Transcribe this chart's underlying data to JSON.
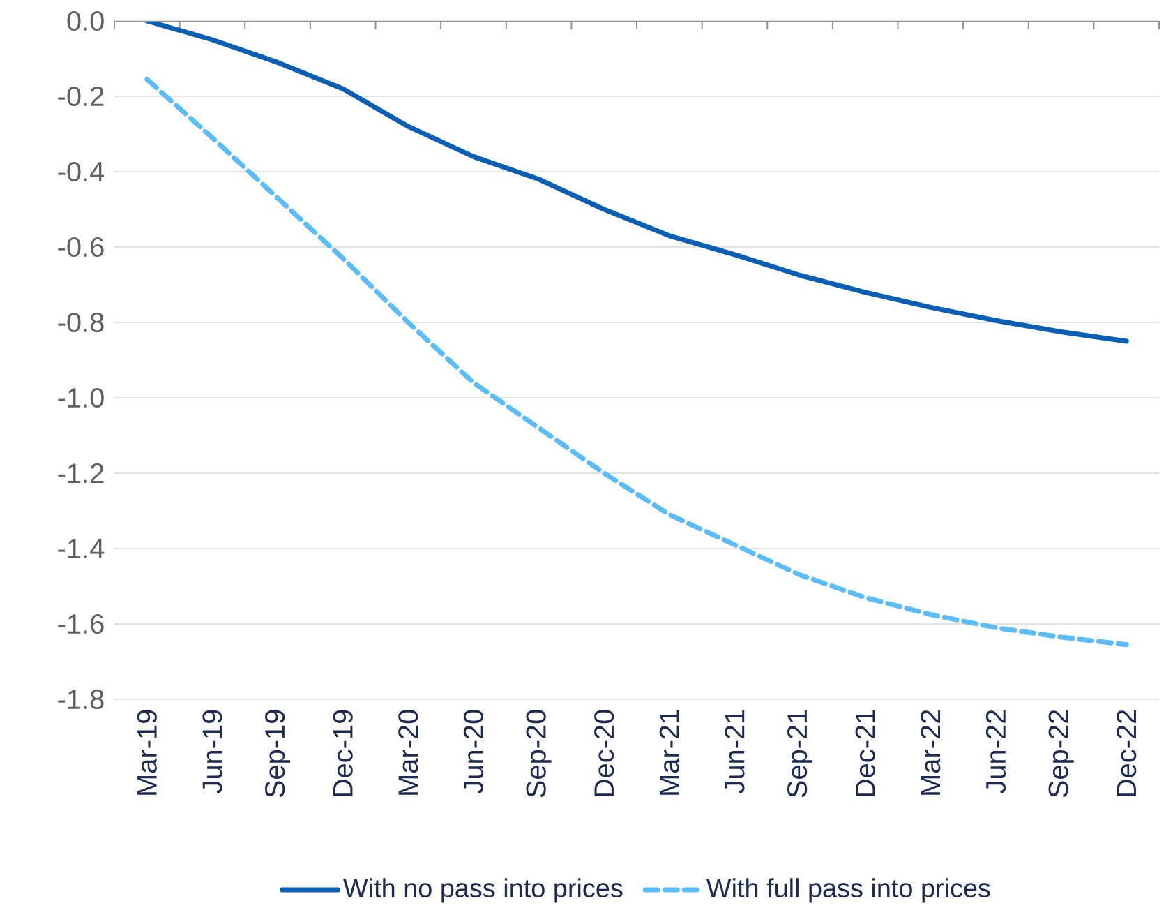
{
  "chart_data": {
    "type": "line",
    "categories": [
      "Mar-19",
      "Jun-19",
      "Sep-19",
      "Dec-19",
      "Mar-20",
      "Jun-20",
      "Sep-20",
      "Dec-20",
      "Mar-21",
      "Jun-21",
      "Sep-21",
      "Dec-21",
      "Mar-22",
      "Jun-22",
      "Sep-22",
      "Dec-22"
    ],
    "series": [
      {
        "name": "With no pass into prices",
        "color": "#0a5eb4",
        "line_style": "solid",
        "values": [
          0.0,
          -0.05,
          -0.11,
          -0.18,
          -0.28,
          -0.36,
          -0.42,
          -0.5,
          -0.57,
          -0.62,
          -0.675,
          -0.72,
          -0.76,
          -0.795,
          -0.825,
          -0.85
        ]
      },
      {
        "name": "With full pass into prices",
        "color": "#5bbcfa",
        "line_style": "dashed",
        "values": [
          -0.155,
          -0.31,
          -0.47,
          -0.63,
          -0.8,
          -0.96,
          -1.08,
          -1.2,
          -1.31,
          -1.39,
          -1.47,
          -1.53,
          -1.575,
          -1.61,
          -1.635,
          -1.655
        ]
      }
    ],
    "ylim": [
      -1.8,
      0.0
    ],
    "yticks": [
      {
        "value": 0,
        "label": "0.0"
      },
      -0.2,
      -0.4,
      -0.6,
      -0.8,
      {
        "value": -1,
        "label": "-1.0"
      },
      -1.2,
      -1.4,
      -1.6,
      -1.8
    ],
    "grid": "y",
    "legend": "bottom"
  }
}
